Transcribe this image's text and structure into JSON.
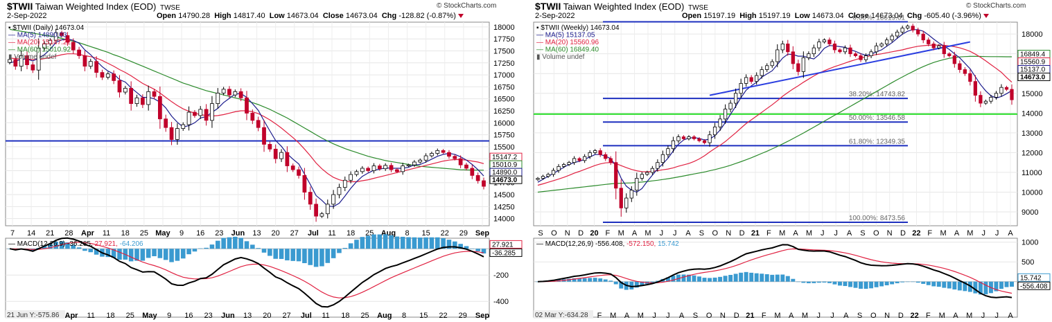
{
  "charts": [
    {
      "title_symbol": "$TWII",
      "title_name": "Taiwan Weighted Index (EOD)",
      "exchange": "TWSE",
      "brand": "© StockCharts.com",
      "date": "2-Sep-2022",
      "ohlc": {
        "open_label": "Open",
        "open": "14790.28",
        "high_label": "High",
        "high": "14817.40",
        "low_label": "Low",
        "low": "14673.04",
        "close_label": "Close",
        "close": "14673.04",
        "chg_label": "Chg",
        "chg": "-128.82 (-0.87%)"
      },
      "legend": {
        "main": "$TWII (Daily) 14673.04",
        "ma5": "MA(5) 14890.03",
        "ma20": "MA(20) 15147.22",
        "ma60": "MA(60) 15010.92",
        "volume": "Volume undef"
      },
      "macd_legend": {
        "label": "MACD(12,26,9)",
        "macd": "-36.285",
        "signal": "27.921",
        "hist": "-64.206"
      },
      "bottom_note": "21 Jun Y:-575.86",
      "colors": {
        "up_candle": "#ffffff",
        "down_candle": "#c0002a",
        "ma5": "#1a1a8c",
        "ma20": "#e02040",
        "ma60": "#2a8a2a",
        "hline": "#1d2fbf",
        "macd_line": "#000000",
        "signal_line": "#e02040",
        "hist": "#3a9ad0"
      },
      "chart_data": {
        "type": "candlestick",
        "price_axis": {
          "min": 13850,
          "max": 18100,
          "ticks": [
            18000,
            17750,
            17500,
            17250,
            17000,
            16750,
            16500,
            16250,
            16000,
            15750,
            15500,
            15250,
            15000,
            14750,
            14500,
            14250,
            14000
          ]
        },
        "x_ticks": [
          "7",
          "14",
          "21",
          "28",
          "Apr",
          "11",
          "18",
          "25",
          "May",
          "9",
          "16",
          "23",
          "Jun",
          "13",
          "20",
          "27",
          "Jul",
          "11",
          "18",
          "25",
          "Aug",
          "8",
          "15",
          "22",
          "29",
          "Sep"
        ],
        "bold_x_ticks": [
          "Apr",
          "May",
          "Jun",
          "Jul",
          "Aug",
          "Sep"
        ],
        "hline": {
          "value": 15620
        },
        "tags": [
          "15147.2",
          "15010.9",
          "14890.0",
          "14673.0"
        ],
        "closes": [
          17320,
          17180,
          17400,
          17210,
          17100,
          17560,
          17650,
          17720,
          17880,
          17820,
          17680,
          17520,
          17400,
          17180,
          17280,
          17050,
          16950,
          17020,
          16880,
          16640,
          16720,
          16400,
          16520,
          16380,
          16650,
          16550,
          16080,
          15900,
          15650,
          15880,
          15960,
          16220,
          16150,
          16280,
          16050,
          16400,
          16620,
          16700,
          16580,
          16650,
          16520,
          16200,
          16050,
          15900,
          15550,
          15450,
          15250,
          15380,
          15100,
          15020,
          14900,
          14550,
          14300,
          14050,
          14100,
          14300,
          14500,
          14650,
          14800,
          14920,
          14980,
          15050,
          15000,
          15100,
          15040,
          15110,
          15020,
          14980,
          15100,
          15120,
          15180,
          15220,
          15310,
          15360,
          15420,
          15380,
          15300,
          15250,
          15120,
          15050,
          14900,
          14790,
          14673
        ],
        "ma5": [
          17250,
          17280,
          17330,
          17330,
          17290,
          17350,
          17420,
          17530,
          17680,
          17730,
          17750,
          17720,
          17660,
          17520,
          17420,
          17290,
          17170,
          17080,
          17020,
          16900,
          16850,
          16730,
          16630,
          16530,
          16530,
          16500,
          16430,
          16310,
          16140,
          16010,
          15910,
          15940,
          16000,
          16100,
          16130,
          16220,
          16300,
          16420,
          16510,
          16600,
          16610,
          16530,
          16400,
          16260,
          16040,
          15830,
          15630,
          15510,
          15350,
          15240,
          15140,
          14930,
          14710,
          14480,
          14380,
          14260,
          14250,
          14320,
          14470,
          14630,
          14770,
          14880,
          14950,
          15010,
          15030,
          15060,
          15050,
          15050,
          15050,
          15070,
          15120,
          15130,
          15180,
          15240,
          15300,
          15340,
          15360,
          15340,
          15290,
          15220,
          15130,
          15020,
          14890
        ],
        "ma20": [
          17350,
          17340,
          17330,
          17330,
          17320,
          17320,
          17340,
          17360,
          17390,
          17420,
          17440,
          17440,
          17430,
          17400,
          17380,
          17350,
          17300,
          17240,
          17180,
          17110,
          17050,
          16980,
          16900,
          16820,
          16760,
          16700,
          16620,
          16530,
          16440,
          16360,
          16290,
          16240,
          16200,
          16170,
          16150,
          16140,
          16150,
          16170,
          16200,
          16230,
          16250,
          16250,
          16230,
          16190,
          16130,
          16060,
          15980,
          15890,
          15790,
          15690,
          15580,
          15450,
          15310,
          15160,
          15040,
          14940,
          14860,
          14810,
          14780,
          14770,
          14770,
          14790,
          14810,
          14840,
          14870,
          14900,
          14930,
          14960,
          14990,
          15020,
          15050,
          15080,
          15110,
          15140,
          15170,
          15200,
          15220,
          15230,
          15230,
          15220,
          15200,
          15180,
          15147
        ],
        "ma60": [
          17950,
          17930,
          17910,
          17890,
          17870,
          17850,
          17830,
          17810,
          17790,
          17760,
          17730,
          17700,
          17670,
          17630,
          17590,
          17550,
          17510,
          17470,
          17420,
          17380,
          17330,
          17280,
          17230,
          17180,
          17130,
          17080,
          17030,
          16980,
          16930,
          16880,
          16830,
          16790,
          16750,
          16710,
          16670,
          16640,
          16610,
          16580,
          16550,
          16520,
          16490,
          16460,
          16420,
          16380,
          16330,
          16280,
          16220,
          16160,
          16100,
          16030,
          15960,
          15890,
          15820,
          15750,
          15680,
          15620,
          15560,
          15510,
          15460,
          15420,
          15380,
          15340,
          15300,
          15270,
          15240,
          15210,
          15190,
          15170,
          15150,
          15130,
          15110,
          15090,
          15080,
          15070,
          15060,
          15050,
          15040,
          15030,
          15020,
          15015,
          15012,
          15011,
          15010
        ],
        "macd_axis": {
          "min": -520,
          "max": 80,
          "ticks": [
            -200,
            -400
          ]
        },
        "macd_tags": [
          "27.921",
          "-36.285"
        ],
        "macd_x_ticks": [
          "Apr",
          "11",
          "18",
          "25",
          "May",
          "9",
          "16",
          "23",
          "Jun",
          "13",
          "20",
          "27",
          "Jul",
          "11",
          "18",
          "25",
          "Aug",
          "8",
          "15",
          "22",
          "29",
          "Sep"
        ]
      }
    },
    {
      "title_symbol": "$TWII",
      "title_name": "Taiwan Weighted Index (EOD)",
      "exchange": "TWSE",
      "brand": "© StockCharts.com",
      "date": "2-Sep-2022",
      "ohlc": {
        "open_label": "Open",
        "open": "15197.19",
        "high_label": "High",
        "high": "15197.19",
        "low_label": "Low",
        "low": "14673.04",
        "close_label": "Close",
        "close": "14673.04",
        "chg_label": "Chg",
        "chg": "-605.40 (-3.96%)"
      },
      "legend": {
        "main": "$TWII (Weekly) 14673.04",
        "ma5": "MA(5) 15137.05",
        "ma20": "MA(20) 15560.96",
        "ma60": "MA(60) 16849.40",
        "volume": "Volume undef"
      },
      "macd_legend": {
        "label": "MACD(12,26,9)",
        "macd": "-556.408",
        "signal": "-572.150",
        "hist": "15.742"
      },
      "bottom_note": "02 Mar Y:-634.28",
      "colors": {
        "up_candle": "#ffffff",
        "down_candle": "#c0002a",
        "ma5": "#1a1a8c",
        "ma20": "#e02040",
        "ma60": "#2a8a2a",
        "fib": "#1d2fbf",
        "trend": "#2a3ee0",
        "support": "#22dd22",
        "macd_line": "#000000",
        "signal_line": "#e02040",
        "hist": "#3a9ad0"
      },
      "chart_data": {
        "type": "candlestick",
        "price_axis": {
          "min": 8300,
          "max": 18600,
          "ticks": [
            18000,
            17000,
            16000,
            15000,
            14000,
            13000,
            12000,
            11000,
            10000,
            9000
          ]
        },
        "x_ticks": [
          "S",
          "O",
          "N",
          "D",
          "20",
          "F",
          "M",
          "A",
          "M",
          "J",
          "J",
          "A",
          "S",
          "O",
          "N",
          "D",
          "21",
          "F",
          "M",
          "A",
          "M",
          "J",
          "J",
          "A",
          "S",
          "O",
          "N",
          "D",
          "22",
          "F",
          "M",
          "A",
          "M",
          "J",
          "J",
          "A"
        ],
        "bold_x_ticks": [
          "20",
          "21",
          "22"
        ],
        "fib_levels": [
          {
            "label": "0.00%: 18619.61",
            "value": 18619.61
          },
          {
            "label": "38.20%: 14743.82",
            "value": 14743.82
          },
          {
            "label": "50.00%: 13546.58",
            "value": 13546.58
          },
          {
            "label": "61.80%: 12349.35",
            "value": 12349.35
          },
          {
            "label": "100.00%: 8473.56",
            "value": 8473.56
          }
        ],
        "support_line": {
          "value": 13950
        },
        "tags": [
          "16849.4",
          "15560.9",
          "15137.0",
          "14673.0"
        ],
        "closes": [
          10700,
          10800,
          10900,
          11100,
          11300,
          11400,
          11500,
          11700,
          11600,
          11800,
          12000,
          12100,
          11900,
          11700,
          11500,
          10200,
          9200,
          9700,
          10100,
          10700,
          10900,
          11000,
          11200,
          11500,
          11900,
          12200,
          12600,
          12800,
          12700,
          12800,
          12700,
          12600,
          12500,
          12900,
          13300,
          13700,
          14200,
          14500,
          15000,
          15500,
          15800,
          15600,
          15900,
          16200,
          16400,
          16600,
          17200,
          17500,
          17100,
          16500,
          16100,
          16800,
          17000,
          17300,
          17600,
          17700,
          17500,
          17200,
          17100,
          17300,
          17000,
          16900,
          16700,
          16900,
          17100,
          17400,
          17500,
          17700,
          17900,
          18100,
          18300,
          18400,
          18200,
          18000,
          17700,
          17500,
          17300,
          17400,
          17000,
          16900,
          16500,
          16200,
          16000,
          15600,
          14900,
          14500,
          14600,
          14800,
          15000,
          15300,
          15200,
          14673
        ],
        "ma5": [
          10500,
          10650,
          10800,
          10950,
          11100,
          11260,
          11400,
          11500,
          11560,
          11660,
          11780,
          11900,
          11900,
          11820,
          11700,
          11320,
          10700,
          10300,
          10100,
          10000,
          10180,
          10540,
          10860,
          11180,
          11430,
          11720,
          12080,
          12420,
          12640,
          12740,
          12760,
          12720,
          12640,
          12680,
          12860,
          13140,
          13520,
          13940,
          14340,
          14780,
          15160,
          15380,
          15560,
          15820,
          15980,
          16140,
          16460,
          16780,
          16980,
          16960,
          16880,
          16880,
          16800,
          16740,
          16960,
          17280,
          17420,
          17400,
          17360,
          17330,
          17210,
          17120,
          17010,
          16920,
          16980,
          17100,
          17200,
          17380,
          17560,
          17780,
          17990,
          18140,
          18220,
          18220,
          18140,
          17960,
          17740,
          17550,
          17380,
          17220,
          17000,
          16800,
          16520,
          16240,
          15840,
          15440,
          15120,
          14880,
          14760,
          14840,
          14980,
          15137
        ],
        "ma20": [
          10350,
          10420,
          10500,
          10580,
          10660,
          10750,
          10850,
          10960,
          11050,
          11150,
          11250,
          11350,
          11430,
          11480,
          11500,
          11450,
          11340,
          11240,
          11150,
          11080,
          11040,
          11030,
          11050,
          11090,
          11130,
          11170,
          11230,
          11310,
          11380,
          11450,
          11550,
          11680,
          11840,
          12030,
          12210,
          12370,
          12560,
          12780,
          13000,
          13240,
          13470,
          13660,
          13850,
          14040,
          14230,
          14420,
          14630,
          14850,
          15040,
          15220,
          15380,
          15560,
          15720,
          15880,
          16020,
          16140,
          16250,
          16350,
          16440,
          16530,
          16620,
          16700,
          16780,
          16850,
          16910,
          16960,
          17000,
          17050,
          17100,
          17150,
          17200,
          17270,
          17330,
          17380,
          17410,
          17430,
          17440,
          17440,
          17430,
          17400,
          17360,
          17300,
          17220,
          17120,
          16980,
          16820,
          16640,
          16450,
          16260,
          16060,
          15800,
          15561
        ],
        "ma60": [
          10000,
          10030,
          10060,
          10090,
          10120,
          10150,
          10180,
          10210,
          10240,
          10270,
          10300,
          10330,
          10360,
          10390,
          10420,
          10440,
          10450,
          10460,
          10470,
          10490,
          10510,
          10540,
          10570,
          10600,
          10640,
          10680,
          10720,
          10770,
          10820,
          10870,
          10920,
          10970,
          11020,
          11080,
          11140,
          11210,
          11280,
          11360,
          11450,
          11540,
          11640,
          11740,
          11850,
          11960,
          12070,
          12190,
          12310,
          12440,
          12570,
          12710,
          12850,
          12990,
          13140,
          13290,
          13440,
          13590,
          13740,
          13890,
          14040,
          14190,
          14340,
          14490,
          14640,
          14790,
          14940,
          15090,
          15240,
          15390,
          15540,
          15690,
          15830,
          15970,
          16100,
          16230,
          16350,
          16460,
          16560,
          16640,
          16710,
          16770,
          16810,
          16840,
          16860,
          16870,
          16870,
          16865,
          16860,
          16857,
          16855,
          16852,
          16850,
          16849
        ],
        "macd_axis": {
          "min": -900,
          "max": 1100,
          "ticks": [
            1000,
            500
          ]
        },
        "macd_tags": [
          "15.742",
          "-556.408"
        ],
        "macd_x_ticks": [
          "F",
          "M",
          "A",
          "M",
          "J",
          "J",
          "A",
          "S",
          "O",
          "N",
          "D",
          "21",
          "F",
          "M",
          "A",
          "M",
          "J",
          "J",
          "A",
          "S",
          "O",
          "N",
          "D",
          "22",
          "F",
          "M",
          "A",
          "M",
          "J",
          "J",
          "A"
        ]
      }
    }
  ]
}
